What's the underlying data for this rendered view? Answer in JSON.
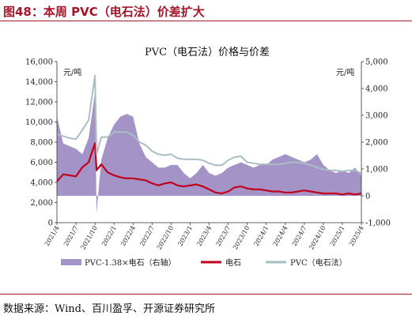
{
  "figure_title": "图48：本周 PVC（电石法）价差扩大",
  "source_text": "数据来源：Wind、百川盈孚、开源证券研究所",
  "colors": {
    "accent": "#a5152a",
    "spread": "#a493c6",
    "carbide": "#c0001d",
    "pvc": "#a9bec4"
  },
  "chart_data": {
    "type": "area",
    "title": "PVC（电石法）价格与价差",
    "y_left_unit": "元/吨",
    "y_right_unit": "元/吨",
    "y_left_ticks": [
      "0",
      "2,000",
      "4,000",
      "6,000",
      "8,000",
      "10,000",
      "12,000",
      "14,000",
      "16,000"
    ],
    "y_right_ticks": [
      "-1,000",
      "0",
      "1,000",
      "2,000",
      "3,000",
      "4,000",
      "5,000"
    ],
    "ylim_left": [
      0,
      16000
    ],
    "ylim_right": [
      -1000,
      5000
    ],
    "x_ticks": [
      "2021/4",
      "2021/7",
      "2021/10",
      "2022/1",
      "2022/4",
      "2022/7",
      "2022/10",
      "2023/1",
      "2023/4",
      "2023/7",
      "2023/10",
      "2024/1",
      "2024/4",
      "2024/7",
      "2024/10",
      "2025/1",
      "2025/4"
    ],
    "legend": [
      "PVC-1.38×电石（右轴）",
      "电石",
      "PVC（电石法）"
    ],
    "legend_position": "bottom",
    "grid": false,
    "series": [
      {
        "name": "PVC-1.38×电石（右轴）",
        "axis": "right",
        "style": "area",
        "x": [
          "2021/4",
          "2021/5",
          "2021/6",
          "2021/7",
          "2021/8",
          "2021/9",
          "2021/10",
          "2021/10",
          "2021/11",
          "2021/12",
          "2022/1",
          "2022/2",
          "2022/3",
          "2022/4",
          "2022/5",
          "2022/6",
          "2022/7",
          "2022/8",
          "2022/9",
          "2022/10",
          "2022/11",
          "2022/12",
          "2023/1",
          "2023/2",
          "2023/3",
          "2023/4",
          "2023/5",
          "2023/6",
          "2023/7",
          "2023/8",
          "2023/9",
          "2023/10",
          "2023/11",
          "2023/12",
          "2024/1",
          "2024/2",
          "2024/3",
          "2024/4",
          "2024/5",
          "2024/6",
          "2024/7",
          "2024/8",
          "2024/9",
          "2024/10",
          "2024/11",
          "2024/12",
          "2025/1",
          "2025/2",
          "2025/3",
          "2025/4"
        ],
        "values": [
          2950,
          1950,
          1850,
          1750,
          1550,
          2150,
          3850,
          -650,
          1350,
          2150,
          2650,
          2950,
          3050,
          2950,
          1950,
          1450,
          1250,
          1050,
          1050,
          1150,
          1150,
          850,
          650,
          850,
          1150,
          850,
          750,
          850,
          1050,
          1150,
          1250,
          1150,
          1050,
          1150,
          1150,
          1350,
          1450,
          1550,
          1450,
          1350,
          1250,
          1350,
          1550,
          1150,
          950,
          850,
          950,
          850,
          1050,
          750
        ]
      },
      {
        "name": "电石",
        "axis": "left",
        "style": "line",
        "x": [
          "2021/4",
          "2021/5",
          "2021/6",
          "2021/7",
          "2021/8",
          "2021/9",
          "2021/10",
          "2021/10",
          "2021/11",
          "2021/12",
          "2022/1",
          "2022/2",
          "2022/3",
          "2022/4",
          "2022/5",
          "2022/6",
          "2022/7",
          "2022/8",
          "2022/9",
          "2022/10",
          "2022/11",
          "2022/12",
          "2023/1",
          "2023/2",
          "2023/3",
          "2023/4",
          "2023/5",
          "2023/6",
          "2023/7",
          "2023/8",
          "2023/9",
          "2023/10",
          "2023/11",
          "2023/12",
          "2024/1",
          "2024/2",
          "2024/3",
          "2024/4",
          "2024/5",
          "2024/6",
          "2024/7",
          "2024/8",
          "2024/9",
          "2024/10",
          "2024/11",
          "2024/12",
          "2025/1",
          "2025/2",
          "2025/3",
          "2025/4"
        ],
        "values": [
          4100,
          4800,
          4700,
          4600,
          5500,
          6000,
          7900,
          5200,
          5800,
          5000,
          4700,
          4500,
          4400,
          4400,
          4300,
          4200,
          3900,
          3700,
          3900,
          4000,
          3700,
          3600,
          3700,
          3800,
          3600,
          3300,
          3000,
          2900,
          3100,
          3500,
          3600,
          3400,
          3300,
          3300,
          3200,
          3100,
          3100,
          3000,
          3000,
          3100,
          3200,
          3100,
          3000,
          2900,
          2900,
          2900,
          2800,
          2900,
          2800,
          2900
        ]
      },
      {
        "name": "PVC（电石法）",
        "axis": "left",
        "style": "line",
        "x": [
          "2021/4",
          "2021/5",
          "2021/6",
          "2021/7",
          "2021/8",
          "2021/9",
          "2021/10",
          "2021/10",
          "2021/11",
          "2021/12",
          "2022/1",
          "2022/2",
          "2022/3",
          "2022/4",
          "2022/5",
          "2022/6",
          "2022/7",
          "2022/8",
          "2022/9",
          "2022/10",
          "2022/11",
          "2022/12",
          "2023/1",
          "2023/2",
          "2023/3",
          "2023/4",
          "2023/5",
          "2023/6",
          "2023/7",
          "2023/8",
          "2023/9",
          "2023/10",
          "2023/11",
          "2023/12",
          "2024/1",
          "2024/2",
          "2024/3",
          "2024/4",
          "2024/5",
          "2024/6",
          "2024/7",
          "2024/8",
          "2024/9",
          "2024/10",
          "2024/11",
          "2024/12",
          "2025/1",
          "2025/2",
          "2025/3",
          "2025/4"
        ],
        "values": [
          8800,
          8600,
          8400,
          8300,
          9200,
          10200,
          14600,
          6800,
          8500,
          8500,
          9000,
          9000,
          9000,
          8700,
          8000,
          7700,
          7100,
          6800,
          6700,
          6800,
          6400,
          6300,
          6300,
          6300,
          6200,
          5900,
          5700,
          5700,
          6200,
          6500,
          6600,
          6000,
          5900,
          5800,
          5800,
          5800,
          5800,
          5900,
          6000,
          6000,
          5900,
          5700,
          5500,
          5300,
          5200,
          5200,
          5100,
          5200,
          5200,
          4900
        ]
      }
    ]
  }
}
